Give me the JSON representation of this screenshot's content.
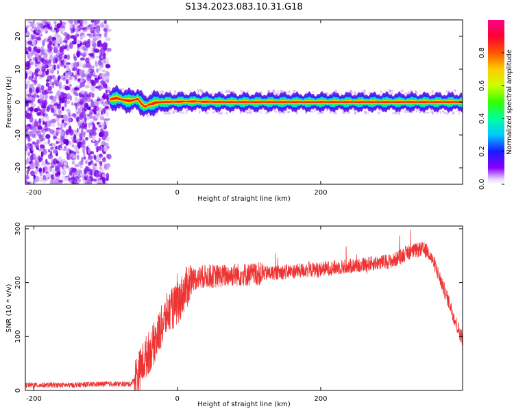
{
  "figure": {
    "title": "S134.2023.083.10.31.G18"
  },
  "chart_data": [
    {
      "type": "heatmap",
      "xlabel": "Height of straight line (km)",
      "ylabel": "Frequency (Hz)",
      "xlim": [
        -212,
        398
      ],
      "ylim": [
        -25,
        25
      ],
      "x_ticks": [
        -200,
        0,
        200
      ],
      "y_ticks": [
        -20,
        -10,
        0,
        10,
        20
      ],
      "noise_region_x": [
        -212,
        -95
      ],
      "signal_ridge": [
        {
          "x": -95,
          "y": 0.8
        },
        {
          "x": -85,
          "y": 1.2
        },
        {
          "x": -75,
          "y": 0.6
        },
        {
          "x": -65,
          "y": 0.3
        },
        {
          "x": -55,
          "y": 1.0
        },
        {
          "x": -50,
          "y": -0.5
        },
        {
          "x": -45,
          "y": -1.5
        },
        {
          "x": -40,
          "y": -0.8
        },
        {
          "x": -30,
          "y": -0.2
        },
        {
          "x": -20,
          "y": 0.0
        },
        {
          "x": 0,
          "y": 0.1
        },
        {
          "x": 20,
          "y": 0.2
        },
        {
          "x": 40,
          "y": 0.1
        },
        {
          "x": 60,
          "y": 0.0
        },
        {
          "x": 100,
          "y": 0.0
        },
        {
          "x": 200,
          "y": 0.0
        },
        {
          "x": 300,
          "y": 0.0
        },
        {
          "x": 398,
          "y": 0.0
        }
      ],
      "colorbar": {
        "label": "Normalized spectral amplitude",
        "range": [
          0,
          1
        ],
        "ticks": [
          "0.0",
          "0.2",
          "0.4",
          "0.6",
          "0.8"
        ]
      }
    },
    {
      "type": "line",
      "xlabel": "Height of straight line (km)",
      "ylabel": "SNR (10 * v/v)",
      "xlim": [
        -212,
        398
      ],
      "ylim": [
        0,
        305
      ],
      "x_ticks": [
        -200,
        0,
        200
      ],
      "y_ticks": [
        0,
        100,
        200,
        300
      ],
      "series": [
        {
          "color": "#ee3333",
          "x": [
            -212,
            -150,
            -100,
            -65,
            -55,
            -45,
            -35,
            -25,
            -15,
            0,
            10,
            20,
            30,
            40,
            60,
            80,
            100,
            150,
            200,
            250,
            300,
            320,
            340,
            350,
            360,
            370,
            380,
            390,
            398
          ],
          "y": [
            10,
            10,
            12,
            12,
            30,
            60,
            80,
            110,
            140,
            160,
            185,
            205,
            210,
            212,
            212,
            215,
            215,
            220,
            225,
            232,
            240,
            255,
            262,
            258,
            230,
            195,
            160,
            120,
            95
          ]
        }
      ]
    }
  ]
}
